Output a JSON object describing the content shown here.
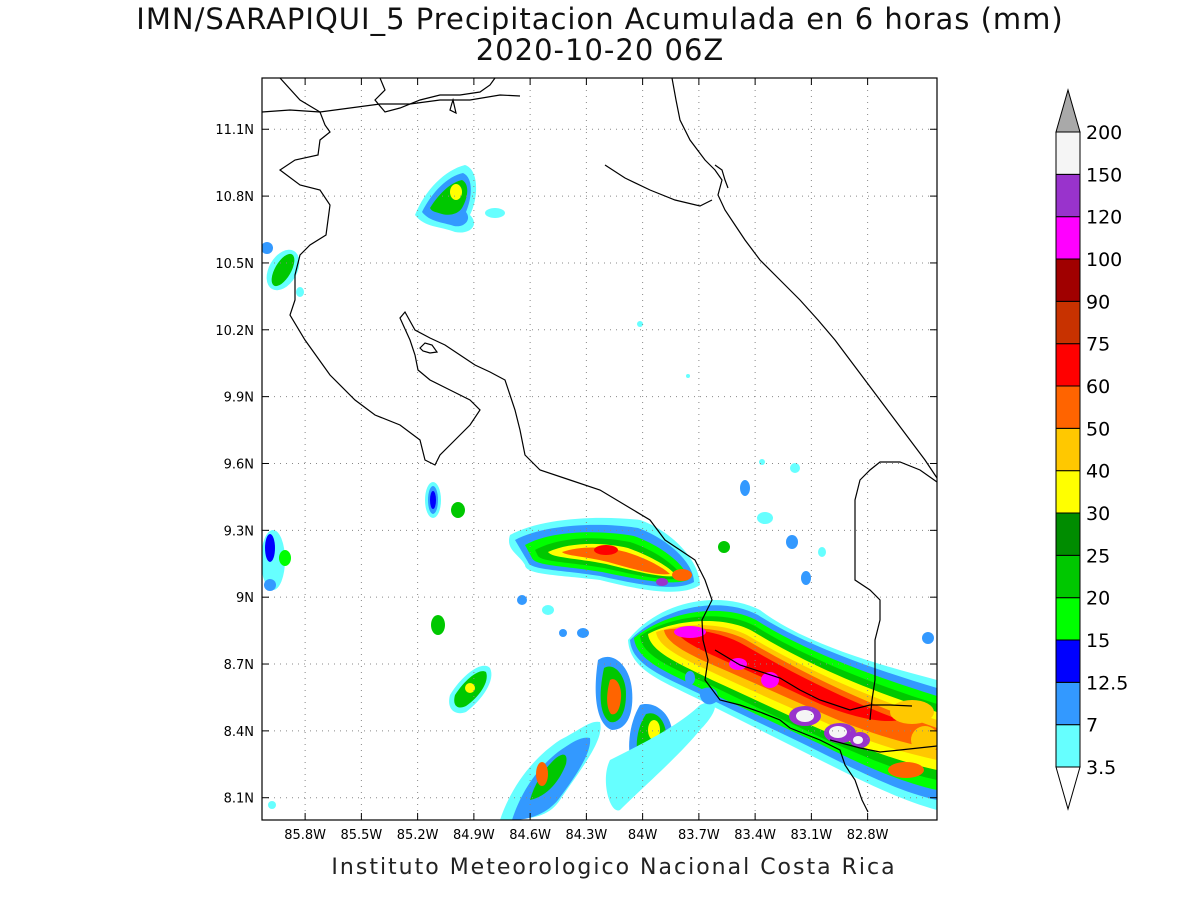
{
  "title": {
    "line1": "IMN/SARAPIQUI_5 Precipitacion Acumulada en 6 horas (mm)",
    "line2": "2020-10-20 06Z"
  },
  "credit": "Instituto Meteorologico Nacional Costa Rica",
  "map": {
    "lon_range": [
      -86.03,
      -82.43
    ],
    "lat_range": [
      8.0,
      11.33
    ],
    "lat_ticks": [
      {
        "label": "11.1N",
        "value": 11.1
      },
      {
        "label": "10.8N",
        "value": 10.8
      },
      {
        "label": "10.5N",
        "value": 10.5
      },
      {
        "label": "10.2N",
        "value": 10.2
      },
      {
        "label": "9.9N",
        "value": 9.9
      },
      {
        "label": "9.6N",
        "value": 9.6
      },
      {
        "label": "9.3N",
        "value": 9.3
      },
      {
        "label": "9N",
        "value": 9.0
      },
      {
        "label": "8.7N",
        "value": 8.7
      },
      {
        "label": "8.4N",
        "value": 8.4
      },
      {
        "label": "8.1N",
        "value": 8.1
      }
    ],
    "lon_ticks": [
      {
        "label": "85.8W",
        "value": -85.8
      },
      {
        "label": "85.5W",
        "value": -85.5
      },
      {
        "label": "85.2W",
        "value": -85.2
      },
      {
        "label": "84.9W",
        "value": -84.9
      },
      {
        "label": "84.6W",
        "value": -84.6
      },
      {
        "label": "84.3W",
        "value": -84.3
      },
      {
        "label": "84W",
        "value": -84.0
      },
      {
        "label": "83.7W",
        "value": -83.7
      },
      {
        "label": "83.4W",
        "value": -83.4
      },
      {
        "label": "83.1W",
        "value": -83.1
      },
      {
        "label": "82.8W",
        "value": -82.8
      }
    ],
    "grid": true,
    "grid_style": "dotted"
  },
  "colorbar": {
    "levels": [
      "3.5",
      "7",
      "12.5",
      "15",
      "20",
      "25",
      "30",
      "40",
      "50",
      "60",
      "75",
      "90",
      "100",
      "120",
      "150",
      "200"
    ],
    "colors": [
      "#ffffff",
      "#66ffff",
      "#3399ff",
      "#0000ff",
      "#00ff00",
      "#00c800",
      "#008c00",
      "#ffff00",
      "#ffc800",
      "#ff6400",
      "#ff0000",
      "#c83200",
      "#a00000",
      "#ff00ff",
      "#9933cc",
      "#f5f5f5",
      "#a9a9a9"
    ],
    "cell_colors": [
      "#66ffff",
      "#3399ff",
      "#0000ff",
      "#00ff00",
      "#00c800",
      "#008c00",
      "#ffff00",
      "#ffc800",
      "#ff6400",
      "#ff0000",
      "#c83200",
      "#a00000",
      "#ff00ff",
      "#9933cc",
      "#f5f5f5"
    ],
    "under_color": "#ffffff",
    "over_color": "#a9a9a9"
  }
}
